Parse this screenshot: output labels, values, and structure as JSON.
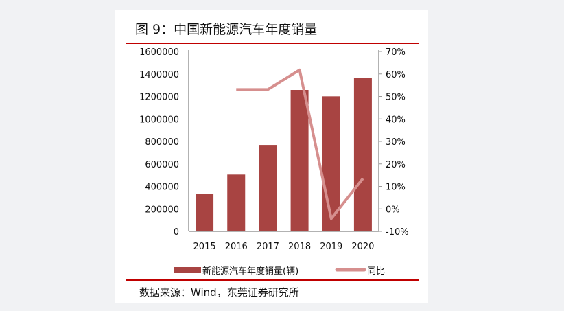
{
  "title": "图 9：中国新能源汽车年度销量",
  "source": "数据来源：Wind，东莞证券研究所",
  "chart_data": {
    "type": "bar",
    "categories": [
      "2015",
      "2016",
      "2017",
      "2018",
      "2019",
      "2020"
    ],
    "series": [
      {
        "name": "新能源汽车年度销量(辆)",
        "type": "bar",
        "axis": "left",
        "color": "#a84442",
        "values": [
          331000,
          505000,
          769000,
          1258000,
          1201000,
          1366000
        ]
      },
      {
        "name": "同比",
        "type": "line",
        "axis": "right",
        "color": "#d68f8e",
        "values": [
          null,
          53.1,
          53.1,
          61.8,
          -4.3,
          13.5
        ]
      }
    ],
    "y_left": {
      "range": [
        0,
        1600000
      ],
      "ticks": [
        "0",
        "200000",
        "400000",
        "600000",
        "800000",
        "1000000",
        "1200000",
        "1400000",
        "1600000"
      ]
    },
    "y_right": {
      "range": [
        -10,
        70
      ],
      "ticks": [
        "-10%",
        "0%",
        "10%",
        "20%",
        "30%",
        "40%",
        "50%",
        "60%",
        "70%"
      ]
    },
    "grid": false,
    "legend_position": "bottom"
  }
}
